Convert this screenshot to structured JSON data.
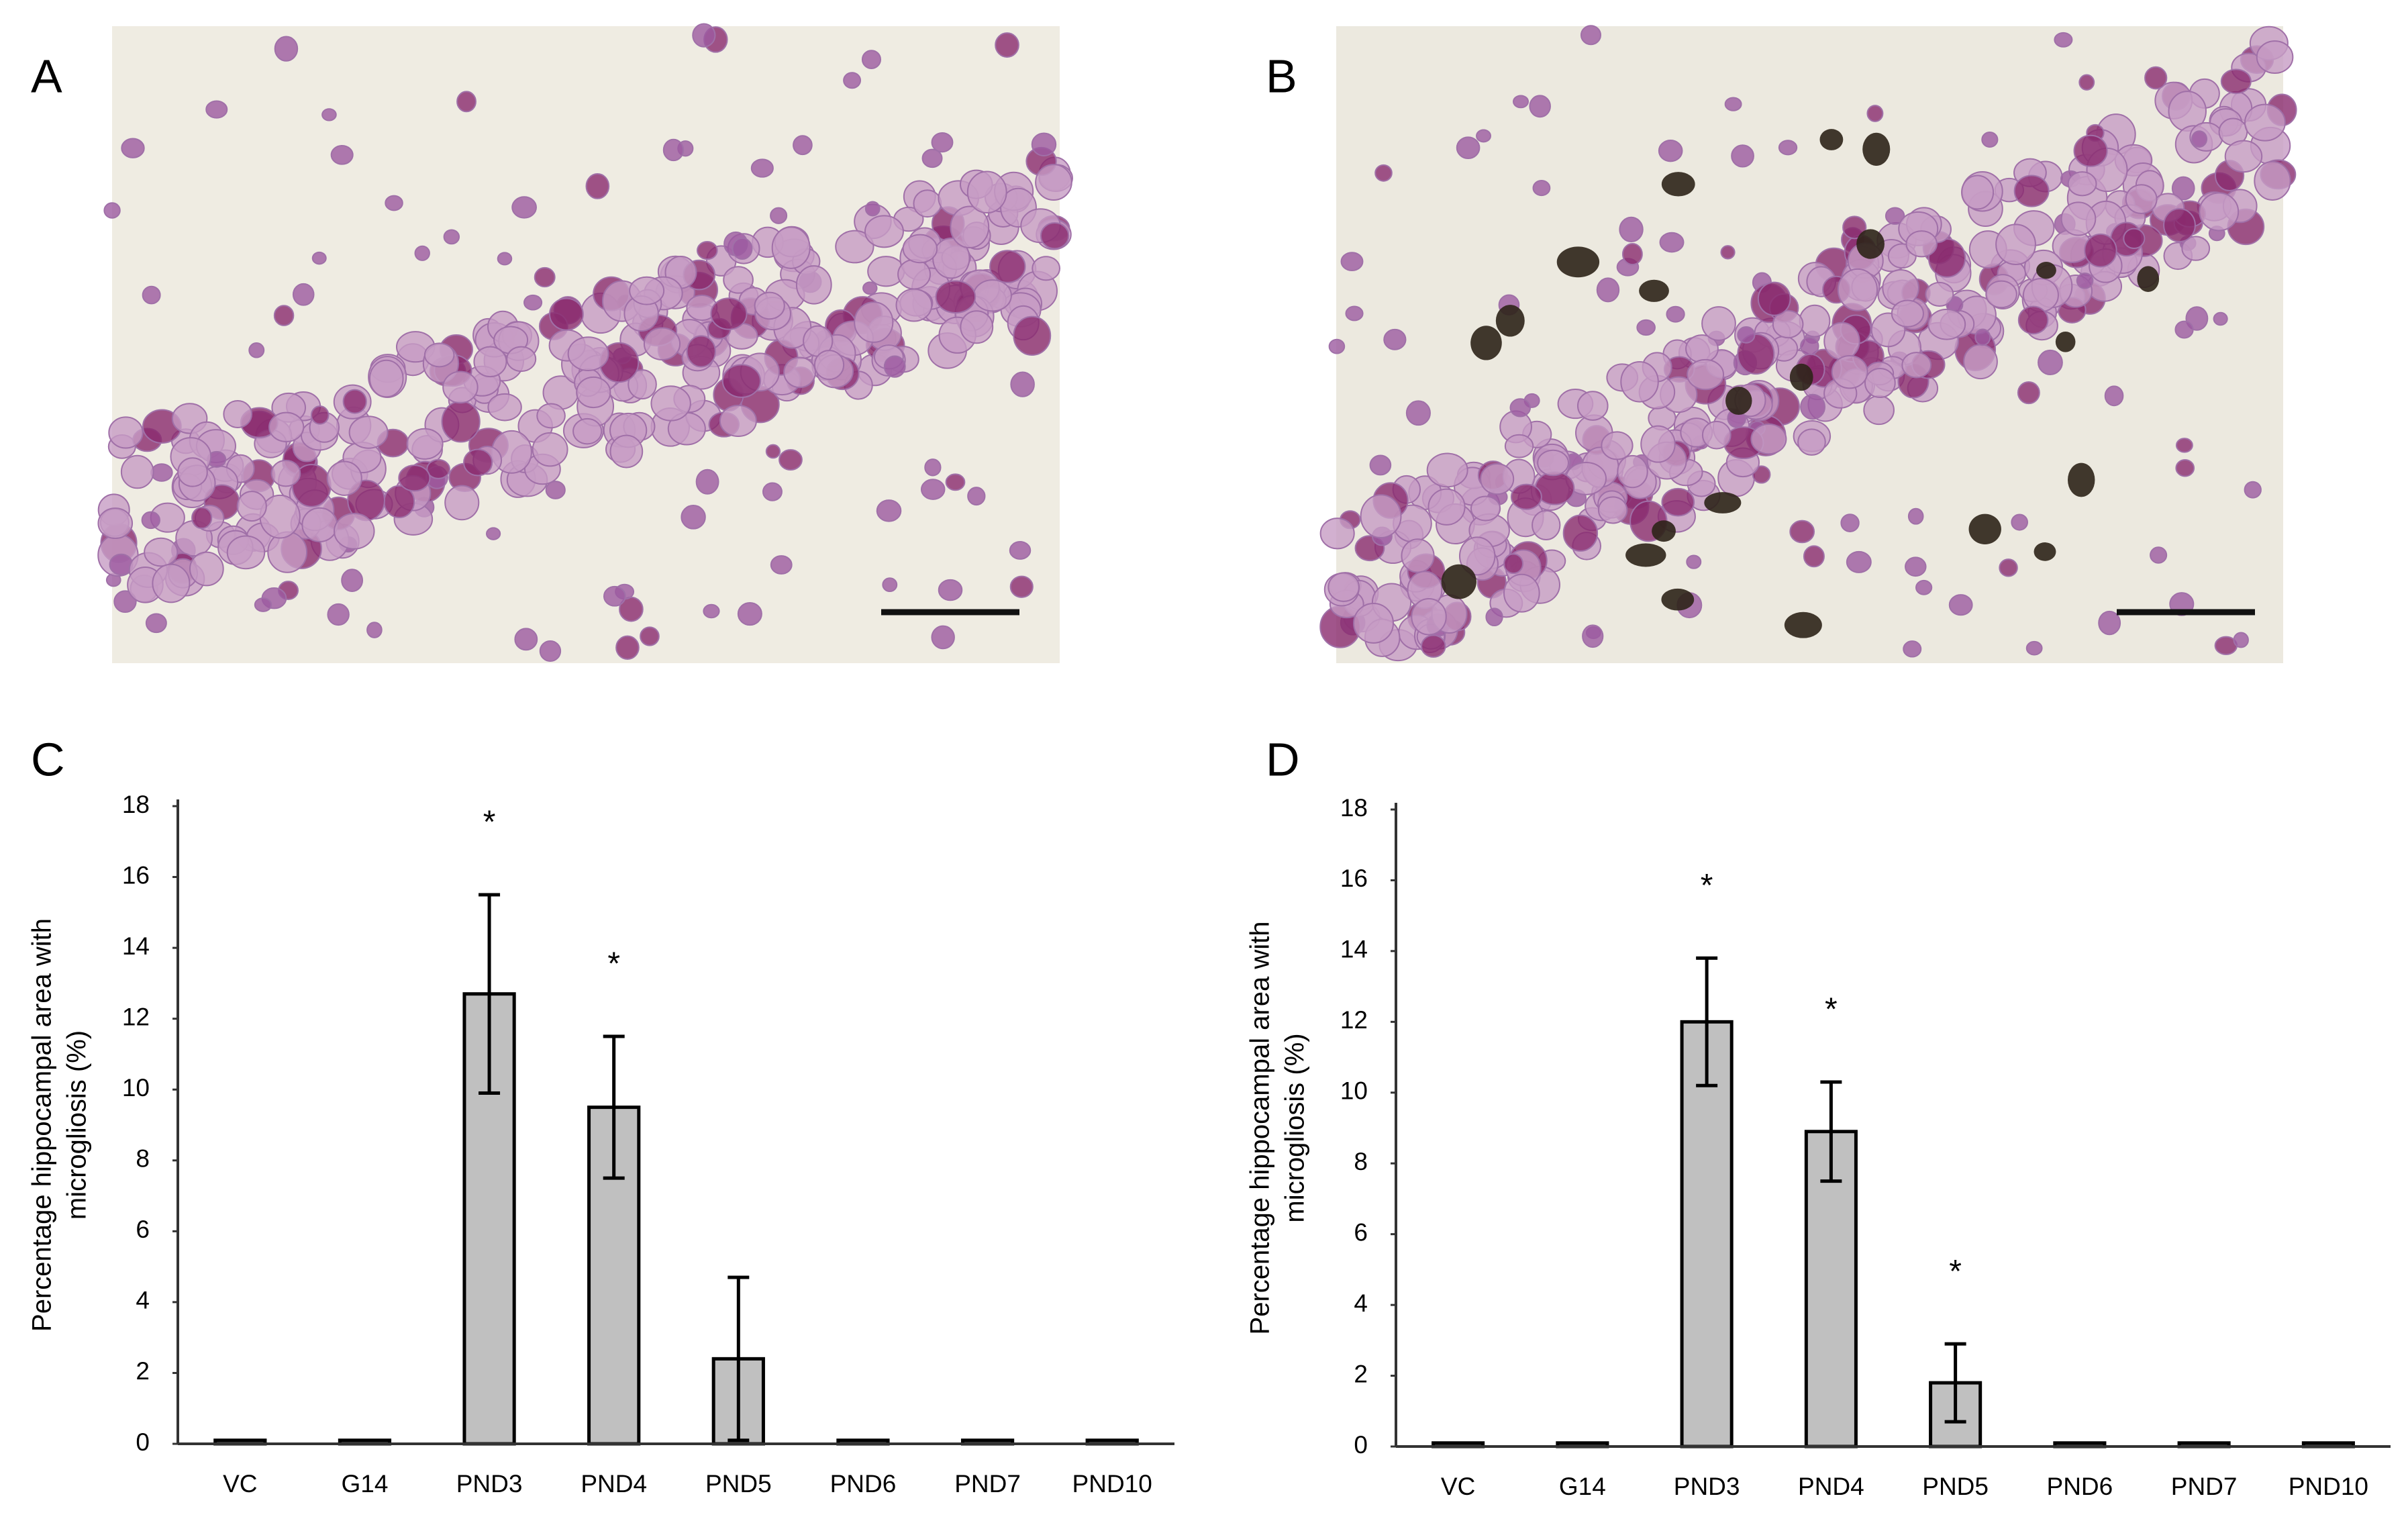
{
  "panel_labels": [
    "A",
    "B",
    "C",
    "D"
  ],
  "chart_data": [
    {
      "type": "bar",
      "ylabel": [
        "Percentage hippocampal  area with",
        "microgliosis (%)"
      ],
      "categories": [
        "VC",
        "G14",
        "PND3",
        "PND4",
        "PND5",
        "PND6",
        "PND7",
        "PND10"
      ],
      "values": [
        0.1,
        0.1,
        12.7,
        9.5,
        2.4,
        0.1,
        0.1,
        0.1
      ],
      "errors": [
        0,
        0,
        2.8,
        2.0,
        2.3,
        0,
        0,
        0
      ],
      "significance_labels": [
        null,
        null,
        "*",
        "*",
        null,
        null,
        null,
        null
      ],
      "color": "#c0c0c0",
      "ylim": [
        0,
        18
      ],
      "yticks": [
        0,
        2,
        4,
        6,
        8,
        10,
        12,
        14,
        16,
        18
      ],
      "grid": false
    },
    {
      "type": "bar",
      "ylabel": [
        "Percentage hippocampal  area with",
        "microgliosis (%)"
      ],
      "categories": [
        "VC",
        "G14",
        "PND3",
        "PND4",
        "PND5",
        "PND6",
        "PND7",
        "PND10"
      ],
      "values": [
        0.1,
        0.1,
        12.0,
        8.9,
        1.8,
        0.1,
        0.1,
        0.1
      ],
      "errors": [
        0,
        0,
        1.8,
        1.4,
        1.1,
        0,
        0,
        0
      ],
      "significance_labels": [
        null,
        null,
        "*",
        "*",
        "*",
        null,
        null,
        null
      ],
      "color": "#c0c0c0",
      "ylim": [
        0,
        18
      ],
      "yticks": [
        0,
        2,
        4,
        6,
        8,
        10,
        12,
        14,
        16,
        18
      ],
      "grid": false
    }
  ]
}
